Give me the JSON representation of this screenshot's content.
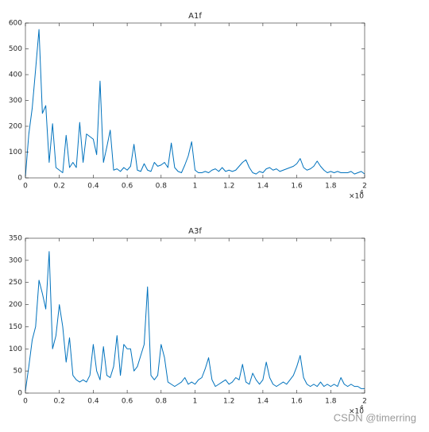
{
  "chart_data": [
    {
      "type": "line",
      "title": "A1f",
      "x": [
        0,
        0.02,
        0.04,
        0.06,
        0.08,
        0.1,
        0.12,
        0.14,
        0.16,
        0.18,
        0.2,
        0.22,
        0.24,
        0.26,
        0.28,
        0.3,
        0.32,
        0.34,
        0.36,
        0.38,
        0.4,
        0.42,
        0.44,
        0.46,
        0.48,
        0.5,
        0.52,
        0.54,
        0.56,
        0.58,
        0.6,
        0.62,
        0.64,
        0.66,
        0.68,
        0.7,
        0.72,
        0.74,
        0.76,
        0.78,
        0.8,
        0.82,
        0.84,
        0.86,
        0.88,
        0.9,
        0.92,
        0.94,
        0.96,
        0.98,
        1,
        1.02,
        1.04,
        1.06,
        1.08,
        1.1,
        1.12,
        1.14,
        1.16,
        1.18,
        1.2,
        1.22,
        1.24,
        1.26,
        1.28,
        1.3,
        1.32,
        1.34,
        1.36,
        1.38,
        1.4,
        1.42,
        1.44,
        1.46,
        1.48,
        1.5,
        1.52,
        1.54,
        1.56,
        1.58,
        1.6,
        1.62,
        1.64,
        1.66,
        1.68,
        1.7,
        1.72,
        1.74,
        1.76,
        1.78,
        1.8,
        1.82,
        1.84,
        1.86,
        1.88,
        1.9,
        1.92,
        1.94,
        1.96,
        1.98,
        2
      ],
      "series": [
        {
          "color": "#0072BD",
          "values": [
            5,
            170,
            270,
            420,
            575,
            250,
            280,
            60,
            210,
            40,
            30,
            20,
            165,
            40,
            60,
            40,
            215,
            60,
            170,
            160,
            150,
            90,
            375,
            60,
            120,
            185,
            30,
            35,
            25,
            40,
            30,
            45,
            130,
            30,
            25,
            55,
            30,
            25,
            60,
            45,
            50,
            60,
            40,
            135,
            40,
            25,
            20,
            50,
            85,
            140,
            30,
            20,
            20,
            25,
            20,
            30,
            35,
            25,
            40,
            25,
            30,
            25,
            30,
            45,
            60,
            70,
            40,
            20,
            15,
            25,
            20,
            35,
            40,
            30,
            35,
            25,
            30,
            35,
            40,
            45,
            55,
            75,
            40,
            30,
            35,
            45,
            65,
            45,
            30,
            20,
            25,
            20,
            25,
            20,
            20,
            20,
            25,
            15,
            20,
            25,
            15
          ]
        }
      ],
      "xlim": [
        0,
        2
      ],
      "xticks": [
        0,
        0.2,
        0.4,
        0.6,
        0.8,
        1,
        1.2,
        1.4,
        1.6,
        1.8,
        2
      ],
      "ylim": [
        0,
        600
      ],
      "yticks": [
        0,
        100,
        200,
        300,
        400,
        500,
        600
      ],
      "x_scale_label": "×10",
      "x_scale_exponent": "4"
    },
    {
      "type": "line",
      "title": "A3f",
      "x": [
        0,
        0.02,
        0.04,
        0.06,
        0.08,
        0.1,
        0.12,
        0.14,
        0.16,
        0.18,
        0.2,
        0.22,
        0.24,
        0.26,
        0.28,
        0.3,
        0.32,
        0.34,
        0.36,
        0.38,
        0.4,
        0.42,
        0.44,
        0.46,
        0.48,
        0.5,
        0.52,
        0.54,
        0.56,
        0.58,
        0.6,
        0.62,
        0.64,
        0.66,
        0.68,
        0.7,
        0.72,
        0.74,
        0.76,
        0.78,
        0.8,
        0.82,
        0.84,
        0.86,
        0.88,
        0.9,
        0.92,
        0.94,
        0.96,
        0.98,
        1,
        1.02,
        1.04,
        1.06,
        1.08,
        1.1,
        1.12,
        1.14,
        1.16,
        1.18,
        1.2,
        1.22,
        1.24,
        1.26,
        1.28,
        1.3,
        1.32,
        1.34,
        1.36,
        1.38,
        1.4,
        1.42,
        1.44,
        1.46,
        1.48,
        1.5,
        1.52,
        1.54,
        1.56,
        1.58,
        1.6,
        1.62,
        1.64,
        1.66,
        1.68,
        1.7,
        1.72,
        1.74,
        1.76,
        1.78,
        1.8,
        1.82,
        1.84,
        1.86,
        1.88,
        1.9,
        1.92,
        1.94,
        1.96,
        1.98,
        2
      ],
      "series": [
        {
          "color": "#0072BD",
          "values": [
            5,
            60,
            120,
            150,
            255,
            225,
            190,
            320,
            100,
            130,
            200,
            150,
            70,
            125,
            40,
            30,
            25,
            30,
            25,
            40,
            110,
            50,
            30,
            105,
            40,
            35,
            60,
            130,
            40,
            110,
            100,
            100,
            50,
            60,
            85,
            110,
            240,
            40,
            30,
            40,
            110,
            80,
            25,
            20,
            15,
            20,
            25,
            35,
            20,
            25,
            20,
            30,
            35,
            55,
            80,
            30,
            15,
            20,
            25,
            30,
            20,
            25,
            35,
            30,
            65,
            25,
            20,
            45,
            30,
            20,
            30,
            70,
            35,
            20,
            15,
            20,
            25,
            20,
            30,
            40,
            60,
            85,
            35,
            20,
            15,
            20,
            15,
            25,
            15,
            20,
            15,
            20,
            15,
            35,
            20,
            15,
            20,
            15,
            15,
            10,
            10
          ]
        }
      ],
      "xlim": [
        0,
        2
      ],
      "xticks": [
        0,
        0.2,
        0.4,
        0.6,
        0.8,
        1,
        1.2,
        1.4,
        1.6,
        1.8,
        2
      ],
      "ylim": [
        0,
        350
      ],
      "yticks": [
        0,
        50,
        100,
        150,
        200,
        250,
        300,
        350
      ],
      "x_scale_label": "×10",
      "x_scale_exponent": "4"
    }
  ],
  "watermark": "CSDN @timerring"
}
